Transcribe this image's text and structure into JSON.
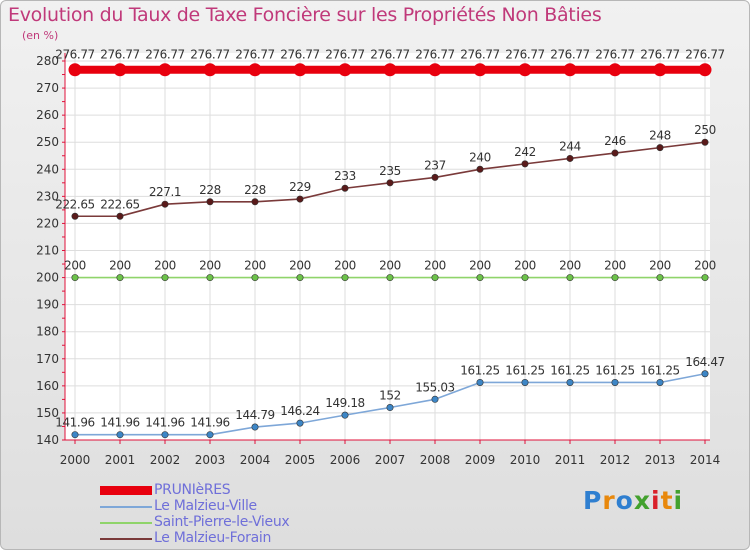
{
  "title": "Evolution du Taux de Taxe Foncière sur les Propriétés Non Bâties",
  "unit": "(en %)",
  "logo": "Proxiti",
  "colors": {
    "title": "#c0397a",
    "axis": "#e0103a",
    "legend_text": "#6f6fd9"
  },
  "chart_data": {
    "type": "line",
    "title": "Evolution du Taux de Taxe Foncière sur les Propriétés Non Bâties",
    "ylabel": "(en %)",
    "xlabel": "",
    "ylim": [
      140,
      280
    ],
    "yticks": [
      140,
      150,
      160,
      170,
      180,
      190,
      200,
      210,
      220,
      230,
      240,
      250,
      260,
      270,
      280
    ],
    "x": [
      "2000",
      "2001",
      "2002",
      "2003",
      "2004",
      "2005",
      "2006",
      "2007",
      "2008",
      "2009",
      "2010",
      "2011",
      "2012",
      "2013",
      "2014"
    ],
    "grid": true,
    "series": [
      {
        "name": "PRUNIèRES",
        "color": "#e8000e",
        "marker": "#e8000e",
        "style": "thick",
        "values": [
          276.77,
          276.77,
          276.77,
          276.77,
          276.77,
          276.77,
          276.77,
          276.77,
          276.77,
          276.77,
          276.77,
          276.77,
          276.77,
          276.77,
          276.77
        ],
        "labels": [
          "276.77",
          "276.77",
          "276.77",
          "276.77",
          "276.77",
          "276.77",
          "276.77",
          "276.77",
          "276.77",
          "276.77",
          "276.77",
          "276.77",
          "276.77",
          "276.77",
          "276.77"
        ]
      },
      {
        "name": "Le Malzieu-Ville",
        "color": "#7ea7d8",
        "marker": "#3d86c6",
        "style": "thin",
        "values": [
          141.96,
          141.96,
          141.96,
          141.96,
          144.79,
          146.24,
          149.18,
          152,
          155.03,
          161.25,
          161.25,
          161.25,
          161.25,
          161.25,
          164.47
        ],
        "labels": [
          "141.96",
          "141.96",
          "141.96",
          "141.96",
          "144.79",
          "146.24",
          "149.18",
          "152",
          "155.03",
          "161.25",
          "161.25",
          "161.25",
          "161.25",
          "161.25",
          "164.47"
        ]
      },
      {
        "name": "Saint-Pierre-le-Vieux",
        "color": "#8fd46a",
        "marker": "#6cc24a",
        "style": "thin",
        "values": [
          200,
          200,
          200,
          200,
          200,
          200,
          200,
          200,
          200,
          200,
          200,
          200,
          200,
          200,
          200
        ],
        "labels": [
          "200",
          "200",
          "200",
          "200",
          "200",
          "200",
          "200",
          "200",
          "200",
          "200",
          "200",
          "200",
          "200",
          "200",
          "200"
        ]
      },
      {
        "name": "Le Malzieu-Forain",
        "color": "#7a3a3a",
        "marker": "#5a1a1a",
        "style": "thin",
        "values": [
          222.65,
          222.65,
          227.1,
          228,
          228,
          229,
          233,
          235,
          237,
          240,
          242,
          244,
          246,
          248,
          250
        ],
        "labels": [
          "222.65",
          "222.65",
          "227.1",
          "228",
          "228",
          "229",
          "233",
          "235",
          "237",
          "240",
          "242",
          "244",
          "246",
          "248",
          "250"
        ]
      }
    ]
  }
}
